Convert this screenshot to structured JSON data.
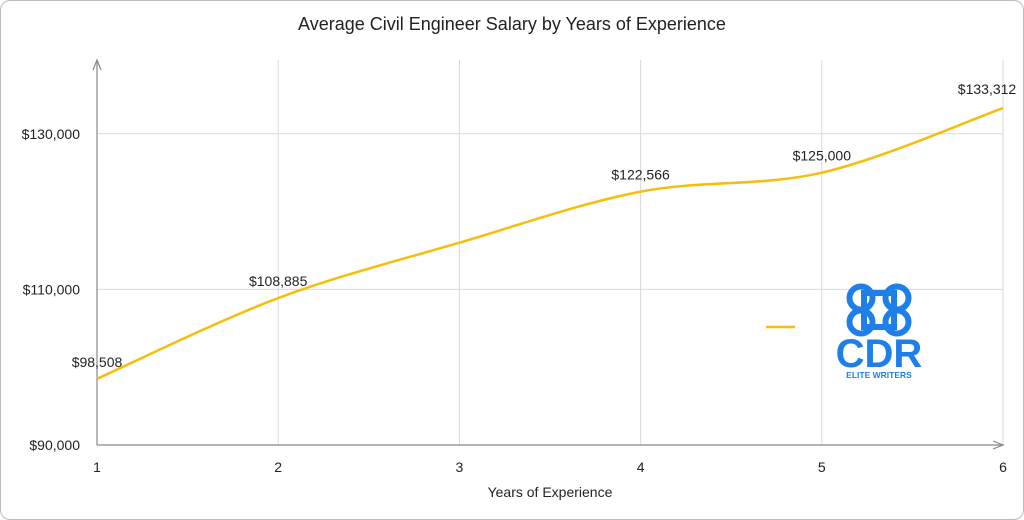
{
  "chart_data": {
    "type": "line",
    "title": "Average Civil Engineer Salary by Years of Experience",
    "xlabel": "Years of Experience",
    "ylabel": "",
    "x": [
      1,
      2,
      3,
      4,
      5,
      6
    ],
    "series": [
      {
        "values": [
          98508,
          108885,
          116000,
          122566,
          125000,
          133312
        ],
        "labeled_points": [
          0,
          1,
          3,
          4,
          5
        ],
        "color": "#F5BE0B"
      }
    ],
    "x_ticks": [
      1,
      2,
      3,
      4,
      5,
      6
    ],
    "y_ticks": [
      90000,
      110000,
      130000
    ],
    "y_tick_labels": [
      "$90,000",
      "$110,000",
      "$130,000"
    ],
    "data_labels": [
      "$98,508",
      "$108,885",
      "",
      "$122,566",
      "$125,000",
      "$133,312"
    ],
    "xlim": [
      1,
      6
    ],
    "ylim": [
      90000,
      140000
    ],
    "grid": true,
    "legend": "right",
    "smooth": true
  },
  "logo": {
    "brand": "CDR",
    "tagline": "ELITE WRITERS",
    "color": "#1E7FE8"
  }
}
